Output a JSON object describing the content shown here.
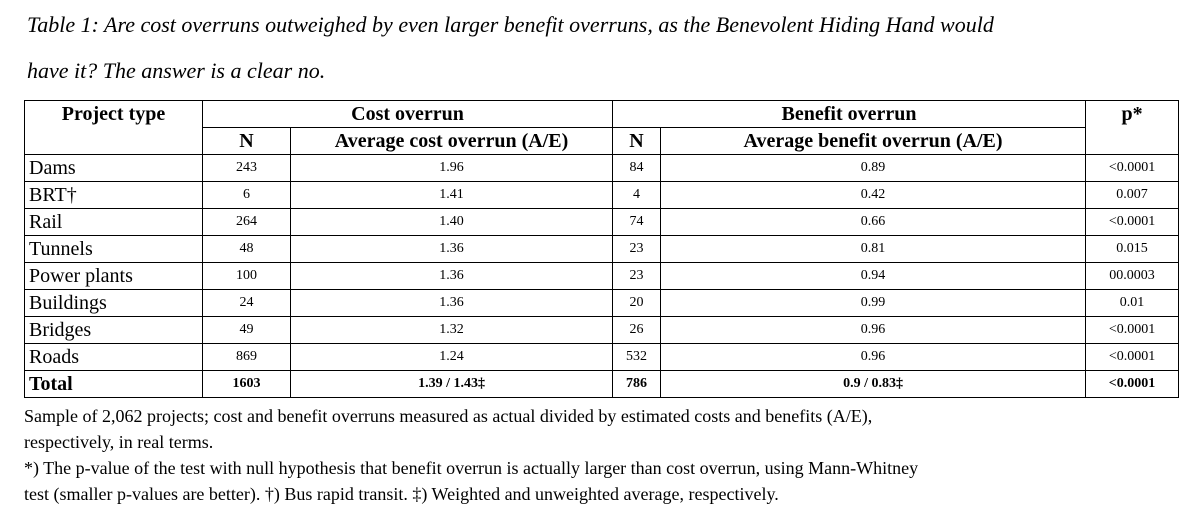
{
  "caption": [
    "Table 1: Are cost overruns outweighed by even larger benefit overruns, as the Benevolent Hiding Hand would",
    "have it? The answer is a clear no."
  ],
  "table": {
    "header": {
      "project_type": "Project type",
      "cost_overrun": "Cost overrun",
      "benefit_overrun": "Benefit overrun",
      "p": "p*",
      "n_cost": "N",
      "avg_cost": "Average cost overrun (A/E)",
      "n_benefit": "N",
      "avg_benefit": "Average benefit overrun (A/E)"
    },
    "rows": [
      [
        "Dams",
        "243",
        "1.96",
        "84",
        "0.89",
        "<0.0001"
      ],
      [
        "BRT†",
        "6",
        "1.41",
        "4",
        "0.42",
        "0.007"
      ],
      [
        "Rail",
        "264",
        "1.40",
        "74",
        "0.66",
        "<0.0001"
      ],
      [
        "Tunnels",
        "48",
        "1.36",
        "23",
        "0.81",
        "0.015"
      ],
      [
        "Power plants",
        "100",
        "1.36",
        "23",
        "0.94",
        "00.0003"
      ],
      [
        "Buildings",
        "24",
        "1.36",
        "20",
        "0.99",
        "0.01"
      ],
      [
        "Bridges",
        "49",
        "1.32",
        "26",
        "0.96",
        "<0.0001"
      ],
      [
        "Roads",
        "869",
        "1.24",
        "532",
        "0.96",
        "<0.0001"
      ]
    ],
    "total": [
      "Total",
      "1603",
      "1.39 / 1.43‡",
      "786",
      "0.9 / 0.83‡",
      "<0.0001"
    ]
  },
  "notes": [
    "Sample of 2,062 projects; cost and benefit overruns measured as actual divided by estimated costs and benefits (A/E),",
    "respectively, in real terms.",
    "*) The p-value of the test with null hypothesis that benefit overrun is actually larger than cost overrun, using Mann-Whitney",
    "test (smaller p-values are better). †) Bus rapid transit. ‡) Weighted and unweighted average, respectively."
  ]
}
